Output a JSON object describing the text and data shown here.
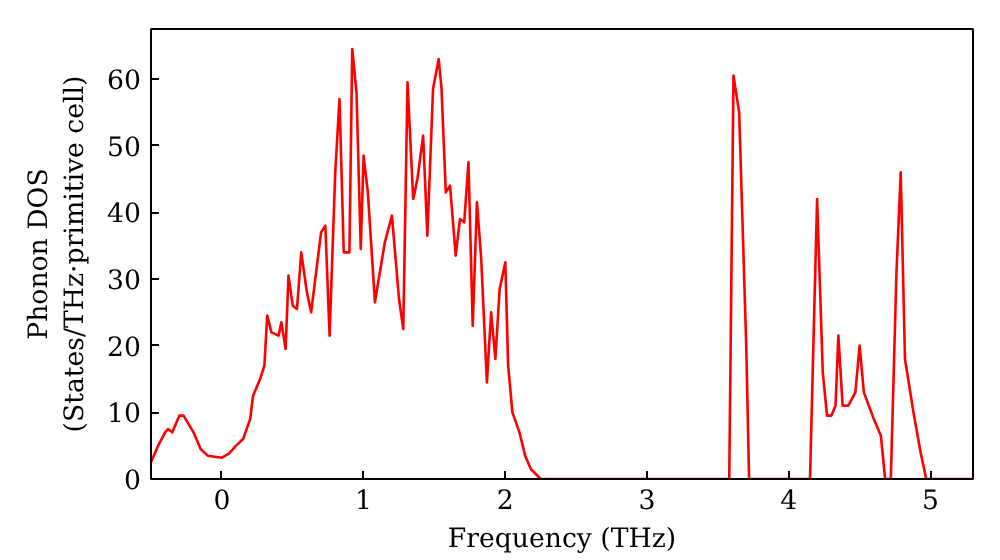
{
  "chart_data": {
    "type": "line",
    "xlabel": "Frequency (THz)",
    "ylabel": "Phonon DOS\n(States/THz·primitive cell)",
    "xlim": [
      -0.5,
      5.3
    ],
    "ylim": [
      0,
      67.5
    ],
    "xticks": [
      0,
      1,
      2,
      3,
      4,
      5
    ],
    "yticks": [
      0,
      10,
      20,
      30,
      40,
      50,
      60
    ],
    "grid": false,
    "series": [
      {
        "color": "#ff0000",
        "x": [
          -0.5,
          -0.45,
          -0.4,
          -0.38,
          -0.35,
          -0.3,
          -0.27,
          -0.2,
          -0.15,
          -0.1,
          0,
          0.05,
          0.1,
          0.15,
          0.2,
          0.22,
          0.27,
          0.3,
          0.32,
          0.35,
          0.4,
          0.42,
          0.45,
          0.47,
          0.5,
          0.53,
          0.56,
          0.6,
          0.63,
          0.7,
          0.73,
          0.76,
          0.8,
          0.83,
          0.86,
          0.9,
          0.92,
          0.95,
          0.98,
          1.0,
          1.03,
          1.08,
          1.15,
          1.2,
          1.25,
          1.28,
          1.31,
          1.35,
          1.38,
          1.42,
          1.45,
          1.49,
          1.53,
          1.55,
          1.58,
          1.61,
          1.65,
          1.68,
          1.71,
          1.74,
          1.77,
          1.8,
          1.83,
          1.87,
          1.9,
          1.93,
          1.96,
          2.0,
          2.02,
          2.05,
          2.1,
          2.14,
          2.18,
          2.25,
          3.55,
          3.58,
          3.61,
          3.65,
          3.7,
          3.72,
          4.15,
          4.17,
          4.2,
          4.24,
          4.27,
          4.3,
          4.33,
          4.35,
          4.38,
          4.42,
          4.47,
          4.5,
          4.53,
          4.6,
          4.65,
          4.68,
          4.72,
          4.76,
          4.79,
          4.82,
          4.88,
          4.93,
          4.97,
          5.3
        ],
        "values": [
          2.5,
          5,
          7,
          7.5,
          7,
          9.5,
          9.5,
          7,
          4.5,
          3.5,
          3.2,
          3.8,
          5,
          6,
          9,
          12.5,
          15,
          17,
          24.5,
          22,
          21.5,
          23.5,
          19.5,
          30.5,
          26,
          25.5,
          34,
          28,
          25,
          37,
          38,
          21.5,
          46,
          57,
          34,
          34,
          64.5,
          58,
          34.5,
          48.5,
          43,
          26.5,
          35.5,
          39.5,
          27,
          22.5,
          59.5,
          42,
          45,
          51.5,
          36.5,
          58.5,
          63,
          58.5,
          43,
          44,
          33.5,
          39,
          38.5,
          47.5,
          23,
          41.5,
          33,
          14.5,
          25,
          18,
          28.5,
          32.5,
          17,
          10,
          7,
          3.5,
          1.5,
          0,
          0,
          0,
          60.5,
          55,
          20,
          0,
          0,
          17,
          42,
          16,
          9.5,
          9.5,
          11,
          21.5,
          11,
          11,
          13,
          20,
          13,
          9,
          6.5,
          0,
          0,
          31,
          46,
          18,
          10,
          4,
          0,
          0
        ]
      }
    ]
  }
}
